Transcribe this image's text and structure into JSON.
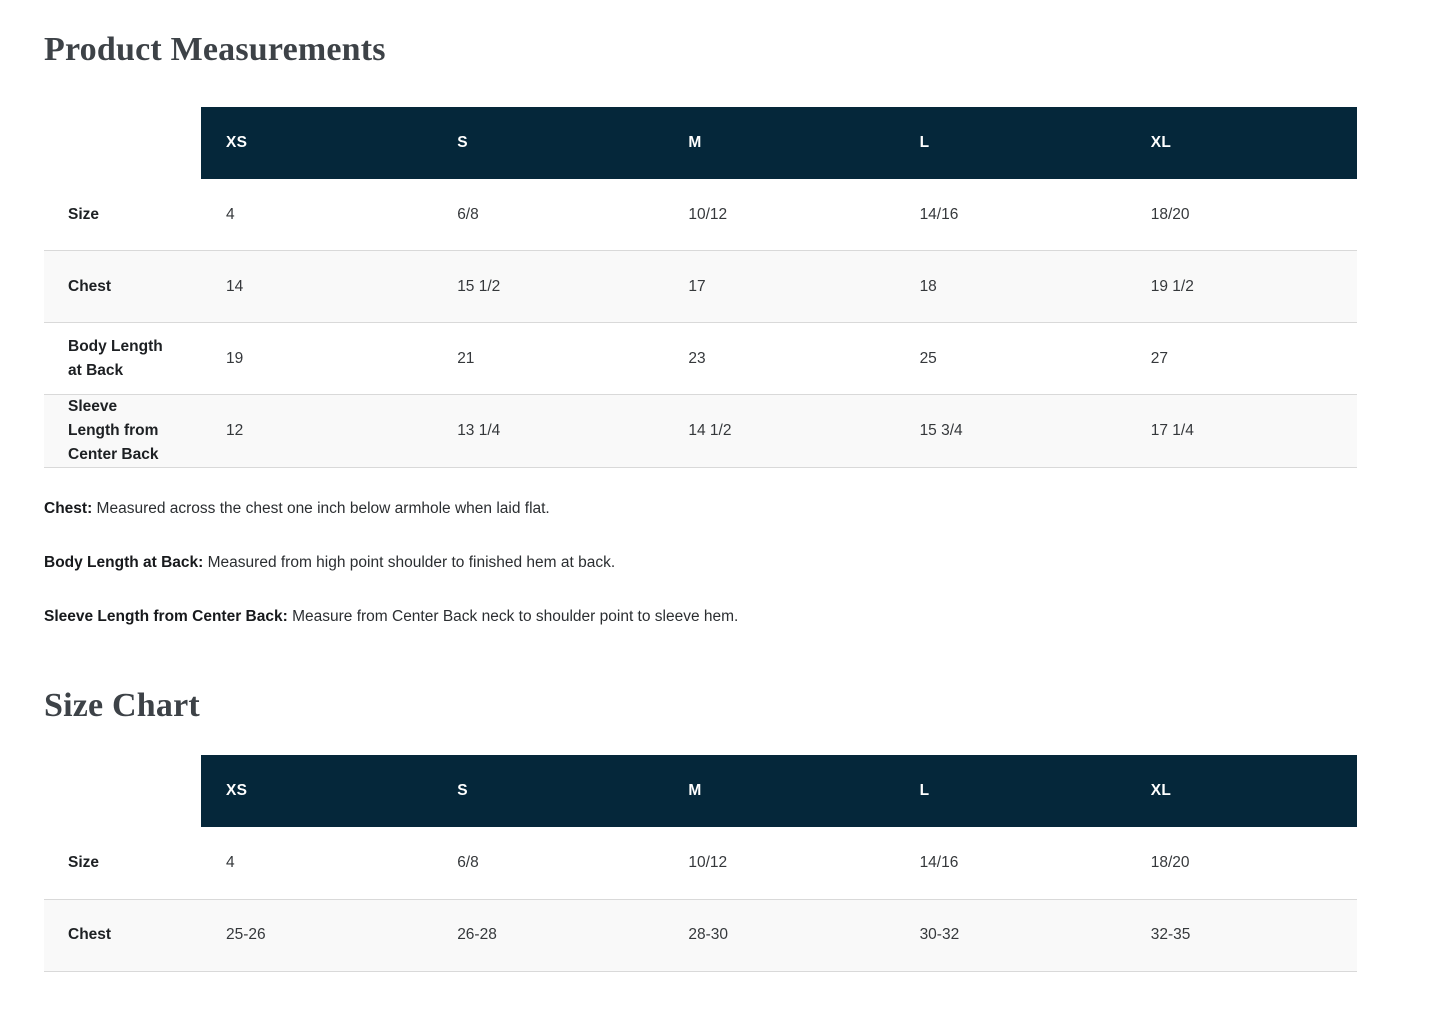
{
  "headings": {
    "measurements": "Product Measurements",
    "size_chart": "Size Chart"
  },
  "colors": {
    "table_header_bg": "#05273a",
    "alt_row_bg": "#f9f9f9",
    "row_border": "#d9d9d9",
    "heading_text": "#3d4247",
    "header_text": "#ffffff"
  },
  "measurements_table": {
    "columns": [
      "XS",
      "S",
      "M",
      "L",
      "XL"
    ],
    "rows": [
      {
        "label": "Size",
        "values": [
          "4",
          "6/8",
          "10/12",
          "14/16",
          "18/20"
        ]
      },
      {
        "label": "Chest",
        "values": [
          "14",
          "15 1/2",
          "17",
          "18",
          "19 1/2"
        ]
      },
      {
        "label": "Body Length\nat Back",
        "values": [
          "19",
          "21",
          "23",
          "25",
          "27"
        ]
      },
      {
        "label": "Sleeve\nLength from\nCenter Back",
        "values": [
          "12",
          "13 1/4",
          "14 1/2",
          "15 3/4",
          "17 1/4"
        ]
      }
    ]
  },
  "notes": [
    {
      "label": "Chest:",
      "text": "Measured across the chest one inch below armhole when laid flat."
    },
    {
      "label": "Body Length at Back:",
      "text": "Measured from high point shoulder to finished hem at back."
    },
    {
      "label": "Sleeve Length from Center Back:",
      "text": "Measure from Center Back neck to shoulder point to sleeve hem."
    }
  ],
  "size_chart_table": {
    "columns": [
      "XS",
      "S",
      "M",
      "L",
      "XL"
    ],
    "rows": [
      {
        "label": "Size",
        "values": [
          "4",
          "6/8",
          "10/12",
          "14/16",
          "18/20"
        ]
      },
      {
        "label": "Chest",
        "values": [
          "25-26",
          "26-28",
          "28-30",
          "30-32",
          "32-35"
        ]
      }
    ]
  }
}
